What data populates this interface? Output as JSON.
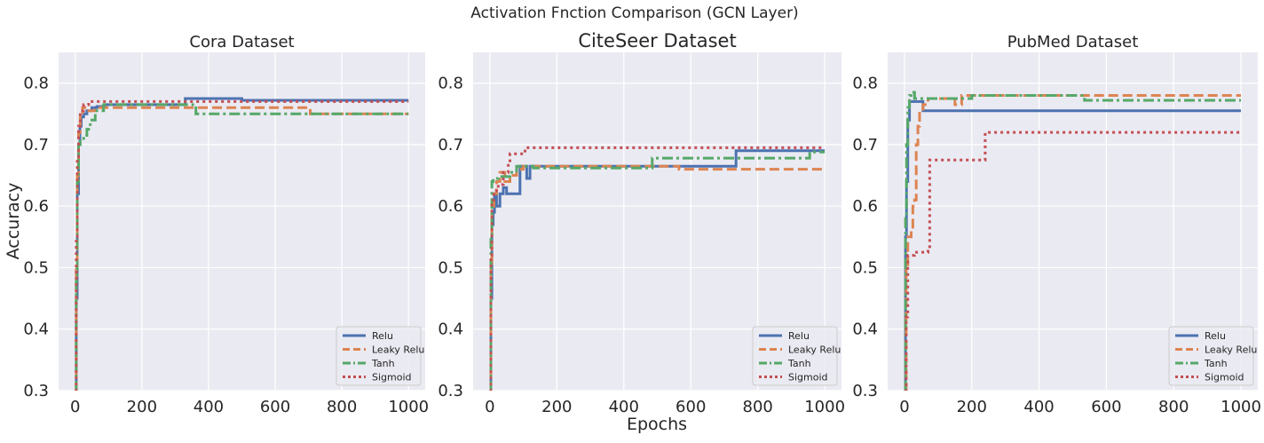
{
  "figure": {
    "title": "Activation Fnction Comparison  (GCN Layer)",
    "xlabel": "Epochs",
    "ylabel": "Accuracy"
  },
  "colors": {
    "background": "#eaeaf2",
    "grid": "#ffffff",
    "relu": "#4c72b0",
    "leaky_relu": "#dd8452",
    "tanh": "#55a868",
    "sigmoid": "#c44e52"
  },
  "chart_data": [
    {
      "type": "line",
      "title": "Cora Dataset",
      "xlim": [
        -50,
        1050
      ],
      "ylim": [
        0.3,
        0.85
      ],
      "x_ticks": [
        0,
        200,
        400,
        600,
        800,
        1000
      ],
      "y_ticks": [
        0.3,
        0.4,
        0.5,
        0.6,
        0.7,
        0.8
      ],
      "legend_position": "lower-right",
      "grid": true,
      "series": [
        {
          "name": "Relu",
          "style": "solid",
          "color": "#4c72b0",
          "points": [
            [
              0,
              0.3
            ],
            [
              3,
              0.45
            ],
            [
              6,
              0.62
            ],
            [
              10,
              0.7
            ],
            [
              14,
              0.73
            ],
            [
              18,
              0.745
            ],
            [
              25,
              0.75
            ],
            [
              35,
              0.755
            ],
            [
              50,
              0.76
            ],
            [
              65,
              0.762
            ],
            [
              90,
              0.765
            ],
            [
              300,
              0.765
            ],
            [
              330,
              0.775
            ],
            [
              500,
              0.772
            ],
            [
              1000,
              0.772
            ]
          ]
        },
        {
          "name": "Leaky Relu",
          "style": "dashed",
          "color": "#dd8452",
          "points": [
            [
              0,
              0.3
            ],
            [
              3,
              0.5
            ],
            [
              6,
              0.65
            ],
            [
              10,
              0.72
            ],
            [
              15,
              0.75
            ],
            [
              22,
              0.76
            ],
            [
              35,
              0.755
            ],
            [
              60,
              0.76
            ],
            [
              700,
              0.76
            ],
            [
              705,
              0.75
            ],
            [
              1000,
              0.75
            ]
          ]
        },
        {
          "name": "Tanh",
          "style": "dashdot",
          "color": "#55a868",
          "points": [
            [
              0,
              0.3
            ],
            [
              3,
              0.48
            ],
            [
              6,
              0.64
            ],
            [
              10,
              0.7
            ],
            [
              15,
              0.71
            ],
            [
              25,
              0.715
            ],
            [
              35,
              0.725
            ],
            [
              45,
              0.74
            ],
            [
              60,
              0.755
            ],
            [
              85,
              0.765
            ],
            [
              360,
              0.765
            ],
            [
              362,
              0.75
            ],
            [
              1000,
              0.75
            ]
          ]
        },
        {
          "name": "Sigmoid",
          "style": "dotted",
          "color": "#c44e52",
          "points": [
            [
              0,
              0.3
            ],
            [
              3,
              0.55
            ],
            [
              6,
              0.68
            ],
            [
              10,
              0.73
            ],
            [
              15,
              0.755
            ],
            [
              25,
              0.765
            ],
            [
              40,
              0.77
            ],
            [
              1000,
              0.77
            ]
          ]
        }
      ]
    },
    {
      "type": "line",
      "title": "CiteSeer Dataset",
      "xlim": [
        -50,
        1050
      ],
      "ylim": [
        0.3,
        0.85
      ],
      "x_ticks": [
        0,
        200,
        400,
        600,
        800,
        1000
      ],
      "y_ticks": [
        0.3,
        0.4,
        0.5,
        0.6,
        0.7,
        0.8
      ],
      "legend_position": "lower-right",
      "grid": true,
      "series": [
        {
          "name": "Relu",
          "style": "solid",
          "color": "#4c72b0",
          "points": [
            [
              0,
              0.3
            ],
            [
              3,
              0.45
            ],
            [
              6,
              0.57
            ],
            [
              10,
              0.59
            ],
            [
              14,
              0.62
            ],
            [
              20,
              0.6
            ],
            [
              30,
              0.62
            ],
            [
              40,
              0.63
            ],
            [
              50,
              0.62
            ],
            [
              60,
              0.62
            ],
            [
              80,
              0.62
            ],
            [
              90,
              0.665
            ],
            [
              110,
              0.645
            ],
            [
              120,
              0.665
            ],
            [
              730,
              0.665
            ],
            [
              735,
              0.69
            ],
            [
              1000,
              0.69
            ]
          ]
        },
        {
          "name": "Leaky Relu",
          "style": "dashed",
          "color": "#dd8452",
          "points": [
            [
              0,
              0.3
            ],
            [
              3,
              0.5
            ],
            [
              6,
              0.6
            ],
            [
              12,
              0.62
            ],
            [
              20,
              0.64
            ],
            [
              30,
              0.655
            ],
            [
              45,
              0.64
            ],
            [
              60,
              0.65
            ],
            [
              80,
              0.66
            ],
            [
              100,
              0.665
            ],
            [
              560,
              0.665
            ],
            [
              565,
              0.66
            ],
            [
              1000,
              0.66
            ]
          ]
        },
        {
          "name": "Tanh",
          "style": "dashdot",
          "color": "#55a868",
          "points": [
            [
              0,
              0.3
            ],
            [
              3,
              0.55
            ],
            [
              6,
              0.64
            ],
            [
              10,
              0.645
            ],
            [
              25,
              0.648
            ],
            [
              60,
              0.655
            ],
            [
              80,
              0.665
            ],
            [
              100,
              0.665
            ],
            [
              130,
              0.662
            ],
            [
              480,
              0.662
            ],
            [
              485,
              0.678
            ],
            [
              950,
              0.678
            ],
            [
              955,
              0.688
            ],
            [
              1000,
              0.688
            ]
          ]
        },
        {
          "name": "Sigmoid",
          "style": "dotted",
          "color": "#c44e52",
          "points": [
            [
              0,
              0.3
            ],
            [
              3,
              0.52
            ],
            [
              6,
              0.61
            ],
            [
              12,
              0.625
            ],
            [
              25,
              0.635
            ],
            [
              40,
              0.655
            ],
            [
              55,
              0.67
            ],
            [
              60,
              0.685
            ],
            [
              100,
              0.685
            ],
            [
              105,
              0.695
            ],
            [
              1000,
              0.695
            ]
          ]
        }
      ]
    },
    {
      "type": "line",
      "title": "PubMed Dataset",
      "xlim": [
        -50,
        1050
      ],
      "ylim": [
        0.3,
        0.85
      ],
      "x_ticks": [
        0,
        200,
        400,
        600,
        800,
        1000
      ],
      "y_ticks": [
        0.3,
        0.4,
        0.5,
        0.6,
        0.7,
        0.8
      ],
      "legend_position": "lower-right",
      "grid": true,
      "series": [
        {
          "name": "Relu",
          "style": "solid",
          "color": "#4c72b0",
          "points": [
            [
              0,
              0.3
            ],
            [
              3,
              0.55
            ],
            [
              6,
              0.64
            ],
            [
              10,
              0.74
            ],
            [
              15,
              0.77
            ],
            [
              50,
              0.77
            ],
            [
              55,
              0.755
            ],
            [
              1000,
              0.755
            ]
          ]
        },
        {
          "name": "Leaky Relu",
          "style": "dashed",
          "color": "#dd8452",
          "points": [
            [
              0,
              0.3
            ],
            [
              5,
              0.5
            ],
            [
              10,
              0.55
            ],
            [
              20,
              0.56
            ],
            [
              25,
              0.6
            ],
            [
              30,
              0.61
            ],
            [
              35,
              0.7
            ],
            [
              40,
              0.73
            ],
            [
              45,
              0.755
            ],
            [
              55,
              0.765
            ],
            [
              70,
              0.775
            ],
            [
              150,
              0.765
            ],
            [
              170,
              0.78
            ],
            [
              1000,
              0.78
            ]
          ]
        },
        {
          "name": "Tanh",
          "style": "dashdot",
          "color": "#55a868",
          "points": [
            [
              0,
              0.3
            ],
            [
              3,
              0.58
            ],
            [
              6,
              0.7
            ],
            [
              10,
              0.76
            ],
            [
              15,
              0.78
            ],
            [
              20,
              0.785
            ],
            [
              30,
              0.775
            ],
            [
              60,
              0.775
            ],
            [
              160,
              0.775
            ],
            [
              200,
              0.78
            ],
            [
              530,
              0.78
            ],
            [
              535,
              0.772
            ],
            [
              1000,
              0.772
            ]
          ]
        },
        {
          "name": "Sigmoid",
          "style": "dotted",
          "color": "#c44e52",
          "points": [
            [
              0,
              0.3
            ],
            [
              5,
              0.42
            ],
            [
              10,
              0.52
            ],
            [
              30,
              0.525
            ],
            [
              70,
              0.53
            ],
            [
              75,
              0.675
            ],
            [
              235,
              0.675
            ],
            [
              240,
              0.72
            ],
            [
              1000,
              0.72
            ]
          ]
        }
      ]
    }
  ]
}
